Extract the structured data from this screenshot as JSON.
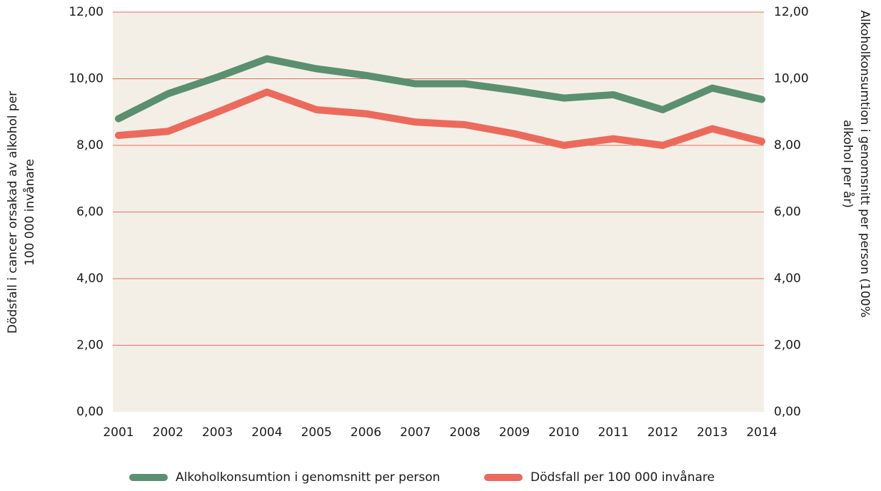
{
  "chart_data": {
    "type": "line",
    "categories": [
      "2001",
      "2002",
      "2003",
      "2004",
      "2005",
      "2006",
      "2007",
      "2008",
      "2009",
      "2010",
      "2011",
      "2012",
      "2013",
      "2014"
    ],
    "ylabel": [
      "Dödsfall i cancer orsakad av alkohol per",
      "100 000 invånare"
    ],
    "y2label": [
      "Alkoholkonsumtion i genomsnitt per person (100%",
      "alkohol per år)"
    ],
    "ylim": [
      0,
      12
    ],
    "yticks": [
      {
        "value": 0,
        "label": "0,00"
      },
      {
        "value": 2,
        "label": "2,00"
      },
      {
        "value": 4,
        "label": "4,00"
      },
      {
        "value": 6,
        "label": "6,00"
      },
      {
        "value": 8,
        "label": "8,00"
      },
      {
        "value": 10,
        "label": "10,00"
      },
      {
        "value": 12,
        "label": "12,00"
      }
    ],
    "y2lim": [
      0,
      12
    ],
    "y2ticks": [
      {
        "value": 0,
        "label": "0,00"
      },
      {
        "value": 2,
        "label": "2,00"
      },
      {
        "value": 4,
        "label": "4,00"
      },
      {
        "value": 6,
        "label": "6,00"
      },
      {
        "value": 8,
        "label": "8,00"
      },
      {
        "value": 10,
        "label": "10,00"
      },
      {
        "value": 12,
        "label": "12,00"
      }
    ],
    "grid": true,
    "series": [
      {
        "name": "Alkoholkonsumtion i genomsnitt per person",
        "color": "#5a9070",
        "axis": "y2",
        "values": [
          8.8,
          9.55,
          10.05,
          10.6,
          10.3,
          10.1,
          9.85,
          9.85,
          9.65,
          9.42,
          9.52,
          9.07,
          9.72,
          9.38
        ]
      },
      {
        "name": "Dödsfall per 100 000 invånare",
        "color": "#ec6a5c",
        "values": [
          8.3,
          8.42,
          9.0,
          9.6,
          9.07,
          8.95,
          8.7,
          8.62,
          8.35,
          8.0,
          8.2,
          8.0,
          8.5,
          8.12
        ]
      }
    ]
  }
}
